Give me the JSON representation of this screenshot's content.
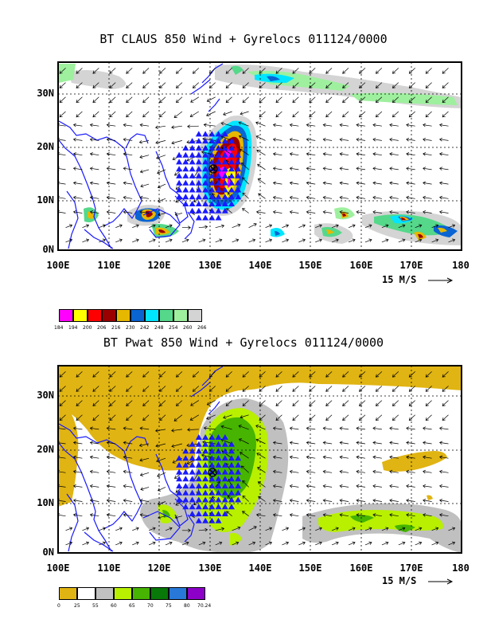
{
  "top": {
    "title": "BT CLAUS 850 Wind + Gyrelocs 011124/0000",
    "y_ticks": [
      "30N",
      "20N",
      "10N",
      "0N"
    ],
    "x_ticks": [
      "100E",
      "110E",
      "120E",
      "130E",
      "140E",
      "150E",
      "160E",
      "170E",
      "180"
    ],
    "scale_label": "15 M/S",
    "legend": {
      "colors": [
        "#ff00ff",
        "#ffff00",
        "#ff0000",
        "#9b0000",
        "#e6b800",
        "#0a64d2",
        "#00e6ff",
        "#55d88a",
        "#9ef09e",
        "#d4d4d4"
      ],
      "labels": [
        "184",
        "194",
        "200",
        "206",
        "216",
        "230",
        "242",
        "248",
        "254",
        "260",
        "266"
      ]
    }
  },
  "bottom": {
    "title": "BT Pwat 850 Wind + Gyrelocs 011124/0000",
    "y_ticks": [
      "30N",
      "20N",
      "10N",
      "0N"
    ],
    "x_ticks": [
      "100E",
      "110E",
      "120E",
      "130E",
      "140E",
      "150E",
      "160E",
      "170E",
      "180"
    ],
    "scale_label": "15 M/S",
    "legend": {
      "colors": [
        "#e0b412",
        "#ffffff",
        "#c0c0c0",
        "#b8f000",
        "#46b400",
        "#087808",
        "#2878d8",
        "#8c00c8"
      ],
      "labels": [
        "0",
        "25",
        "55",
        "60",
        "65",
        "70",
        "75",
        "80",
        "70.24"
      ]
    }
  },
  "colors": {
    "coast": "#1a1aff",
    "gyre_marker": "#1a1aff",
    "arrow": "#000000"
  }
}
